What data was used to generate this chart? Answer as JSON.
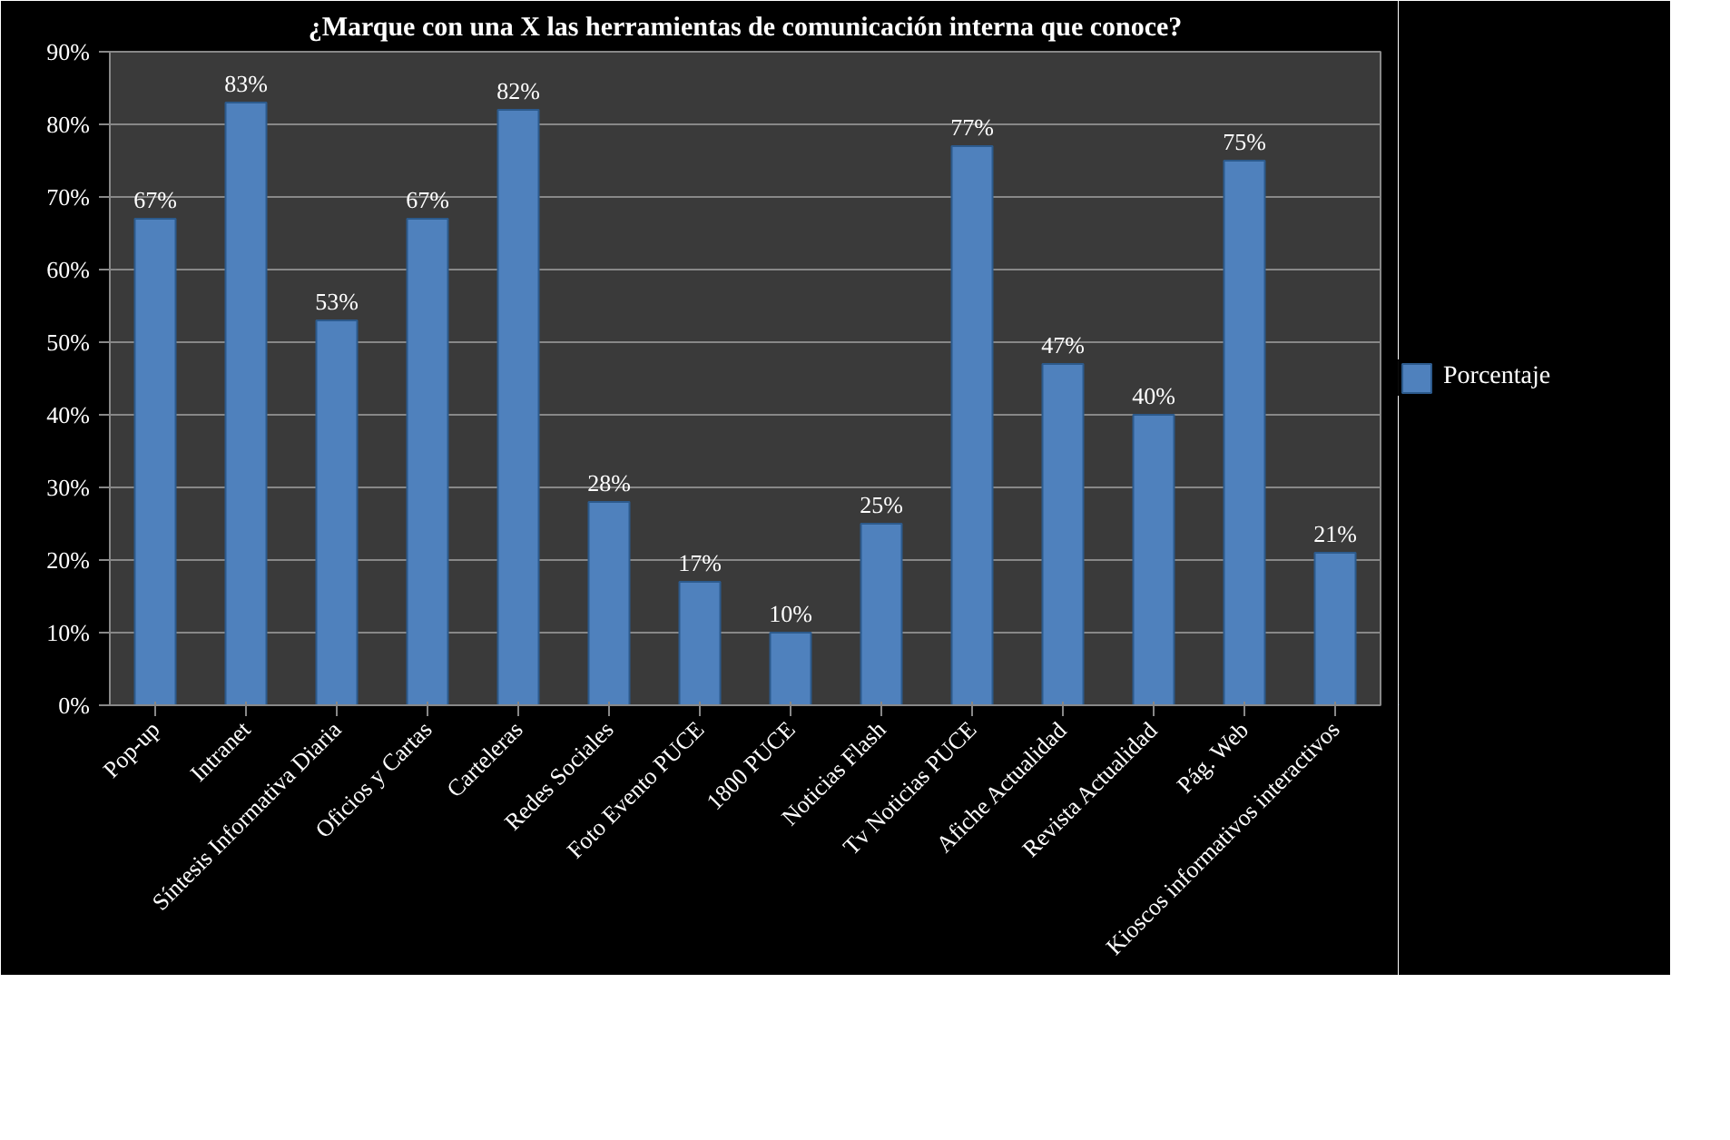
{
  "chart_data": {
    "type": "bar",
    "title": "¿Marque con una X las herramientas de comunicación interna que conoce?",
    "categories": [
      "Pop-up",
      "Intranet",
      "Síntesis Informativa Diaria",
      "Oficios y Cartas",
      "Carteleras",
      "Redes Sociales",
      "Foto Evento PUCE",
      "1800 PUCE",
      "Noticias Flash",
      "Tv Noticias PUCE",
      "Afiche Actualidad",
      "Revista Actualidad",
      "Pág. Web",
      "Kioscos informativos interactivos"
    ],
    "series": [
      {
        "name": "Porcentaje",
        "color": "#4f81bd",
        "values": [
          67,
          83,
          53,
          67,
          82,
          28,
          17,
          10,
          25,
          77,
          47,
          40,
          75,
          21
        ],
        "value_labels": [
          "67%",
          "83%",
          "53%",
          "67%",
          "82%",
          "28%",
          "17%",
          "10%",
          "25%",
          "77%",
          "47%",
          "40%",
          "75%",
          "21%"
        ]
      }
    ],
    "ylim": [
      0,
      90
    ],
    "yticks": [
      {
        "value": 0,
        "label": "0%"
      },
      {
        "value": 10,
        "label": "10%"
      },
      {
        "value": 20,
        "label": "20%"
      },
      {
        "value": 30,
        "label": "30%"
      },
      {
        "value": 40,
        "label": "40%"
      },
      {
        "value": 50,
        "label": "50%"
      },
      {
        "value": 60,
        "label": "60%"
      },
      {
        "value": 70,
        "label": "70%"
      },
      {
        "value": 80,
        "label": "80%"
      },
      {
        "value": 90,
        "label": "90%"
      }
    ],
    "grid": "y",
    "legend": "right"
  }
}
